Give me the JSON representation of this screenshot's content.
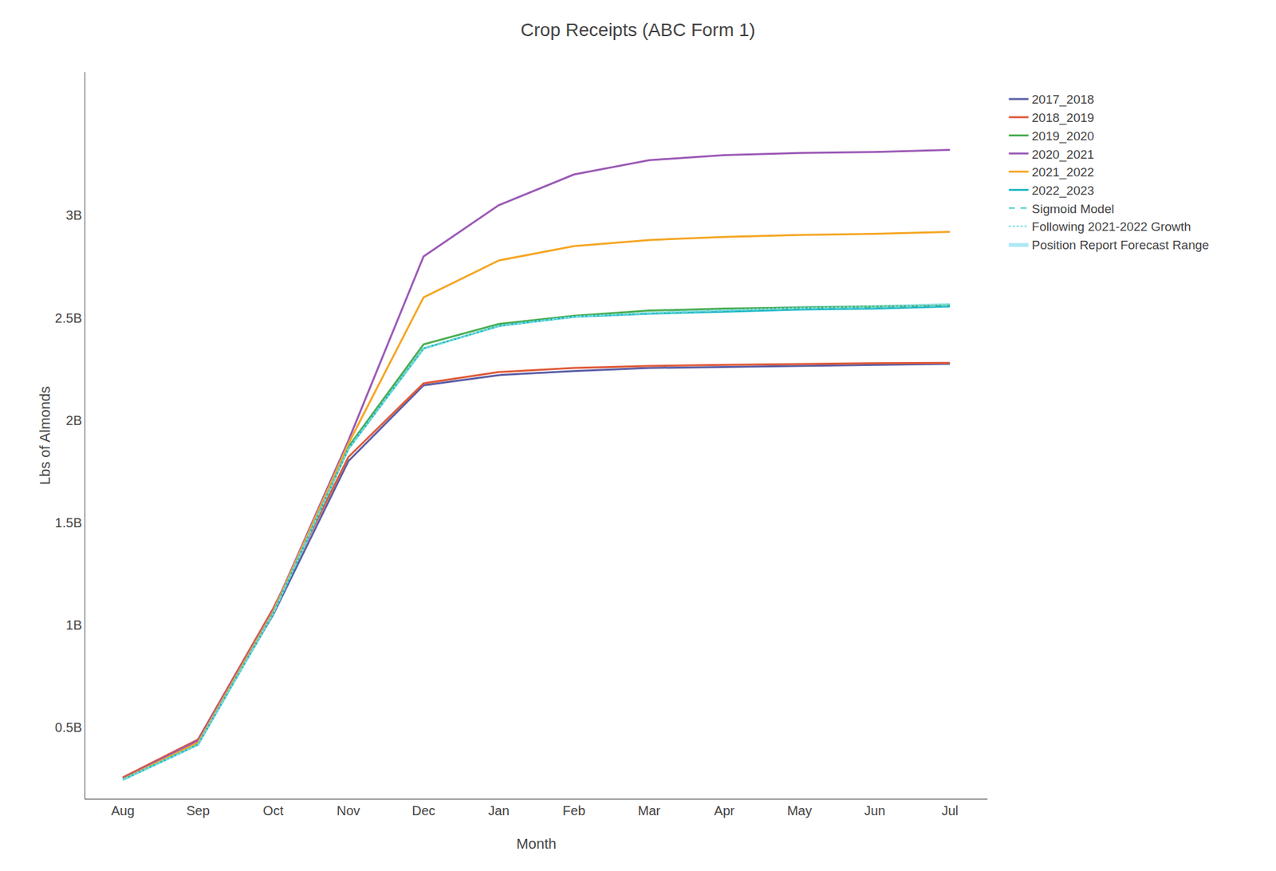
{
  "chart_data": {
    "type": "line",
    "title": "Crop Receipts (ABC Form 1)",
    "x_label": "Month",
    "y_label": "Lbs of Almonds",
    "categories": [
      "Aug",
      "Sep",
      "Oct",
      "Nov",
      "Dec",
      "Jan",
      "Feb",
      "Mar",
      "Apr",
      "May",
      "Jun",
      "Jul"
    ],
    "ylim": [
      150000000,
      3700000000
    ],
    "yticks": [
      {
        "value": 500000000,
        "label": "0.5B"
      },
      {
        "value": 1000000000,
        "label": "1B"
      },
      {
        "value": 1500000000,
        "label": "1.5B"
      },
      {
        "value": 2000000000,
        "label": "2B"
      },
      {
        "value": 2500000000,
        "label": "2.5B"
      },
      {
        "value": 3000000000,
        "label": "3B"
      }
    ],
    "grid": false,
    "legend": "right",
    "series": [
      {
        "name": "2017_2018",
        "color": "#5B5EA6",
        "line_style": "solid",
        "values": [
          250000000,
          430000000,
          1050000000,
          1800000000,
          2170000000,
          2220000000,
          2240000000,
          2255000000,
          2260000000,
          2265000000,
          2270000000,
          2275000000
        ]
      },
      {
        "name": "2018_2019",
        "color": "#E05A3A",
        "line_style": "solid",
        "values": [
          255000000,
          440000000,
          1080000000,
          1820000000,
          2180000000,
          2235000000,
          2255000000,
          2265000000,
          2270000000,
          2275000000,
          2278000000,
          2280000000
        ]
      },
      {
        "name": "2019_2020",
        "color": "#4BAD52",
        "line_style": "solid",
        "values": [
          245000000,
          420000000,
          1060000000,
          1870000000,
          2370000000,
          2470000000,
          2510000000,
          2535000000,
          2545000000,
          2550000000,
          2555000000,
          2560000000
        ]
      },
      {
        "name": "2020_2021",
        "color": "#9B59B6",
        "line_style": "solid",
        "values": [
          248000000,
          435000000,
          1070000000,
          1900000000,
          2800000000,
          3050000000,
          3200000000,
          3270000000,
          3295000000,
          3305000000,
          3310000000,
          3320000000
        ]
      },
      {
        "name": "2021_2022",
        "color": "#F5A623",
        "line_style": "solid",
        "values": [
          246000000,
          425000000,
          1065000000,
          1885000000,
          2600000000,
          2780000000,
          2850000000,
          2880000000,
          2895000000,
          2905000000,
          2910000000,
          2920000000
        ]
      },
      {
        "name": "2022_2023",
        "color": "#20B8C8",
        "line_style": "solid",
        "values": [
          243000000,
          415000000,
          1055000000,
          1860000000,
          2350000000,
          2460000000,
          2505000000,
          2520000000,
          2530000000,
          2540000000,
          2545000000,
          2555000000
        ]
      },
      {
        "name": "Sigmoid Model",
        "color": "#5ECFCF",
        "line_style": "dashed",
        "values": [
          243000000,
          415000000,
          1055000000,
          1860000000,
          2350000000,
          2460000000,
          2505000000,
          2522000000,
          2535000000,
          2545000000,
          2550000000,
          2560000000
        ]
      },
      {
        "name": "Following 2021-2022 Growth",
        "color": "#7AE0DC",
        "line_style": "dotted",
        "values": [
          243000000,
          415000000,
          1055000000,
          1860000000,
          2350000000,
          2460000000,
          2505000000,
          2524000000,
          2538000000,
          2548000000,
          2555000000,
          2565000000
        ]
      },
      {
        "name": "Position Report Forecast Range",
        "type": "band",
        "color": "#ADE8F4",
        "lower": [
          243000000,
          415000000,
          1055000000,
          1860000000,
          2350000000,
          2460000000,
          2505000000,
          2518000000,
          2528000000,
          2538000000,
          2543000000,
          2552000000
        ],
        "upper": [
          243000000,
          415000000,
          1055000000,
          1860000000,
          2350000000,
          2460000000,
          2505000000,
          2528000000,
          2545000000,
          2558000000,
          2562000000,
          2572000000
        ]
      }
    ]
  }
}
